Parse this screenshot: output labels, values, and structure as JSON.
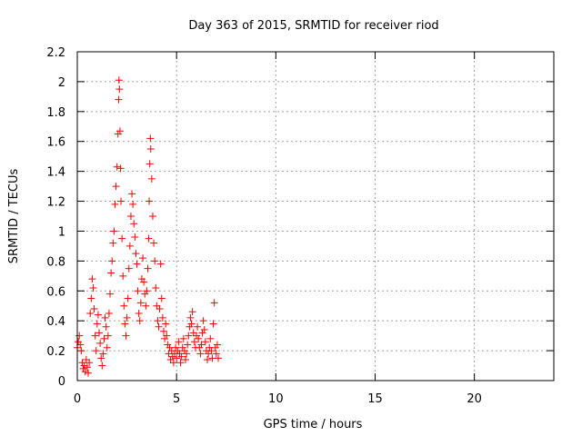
{
  "chart_data": {
    "type": "scatter",
    "title": "Day 363 of 2015, SRMTID for receiver riod",
    "xlabel": "GPS time / hours",
    "ylabel": "SRMTID / TECUs",
    "xlim": [
      0,
      24
    ],
    "ylim": [
      0,
      2.2
    ],
    "xticks": [
      0,
      5,
      10,
      15,
      20
    ],
    "yticks": [
      0,
      0.2,
      0.4,
      0.6,
      0.8,
      1,
      1.2,
      1.4,
      1.6,
      1.8,
      2,
      2.2
    ],
    "xtick_labels": [
      "0",
      "5",
      "10",
      "15",
      "20"
    ],
    "ytick_labels": [
      "0",
      "0.2",
      "0.4",
      "0.6",
      "0.8",
      "1",
      "1.2",
      "1.4",
      "1.6",
      "1.8",
      "2",
      "2.2"
    ],
    "grid": true,
    "marker": "plus",
    "series": [
      {
        "name": "SRMTID",
        "color": "#ff0000",
        "points": [
          [
            0.0,
            0.22
          ],
          [
            0.05,
            0.26
          ],
          [
            0.1,
            0.3
          ],
          [
            0.15,
            0.24
          ],
          [
            0.2,
            0.2
          ],
          [
            0.25,
            0.12
          ],
          [
            0.3,
            0.08
          ],
          [
            0.35,
            0.1
          ],
          [
            0.4,
            0.06
          ],
          [
            0.45,
            0.14
          ],
          [
            0.5,
            0.09
          ],
          [
            0.55,
            0.05
          ],
          [
            0.6,
            0.12
          ],
          [
            0.65,
            0.45
          ],
          [
            0.7,
            0.55
          ],
          [
            0.75,
            0.68
          ],
          [
            0.8,
            0.62
          ],
          [
            0.85,
            0.48
          ],
          [
            0.9,
            0.3
          ],
          [
            0.95,
            0.2
          ],
          [
            1.0,
            0.38
          ],
          [
            1.05,
            0.44
          ],
          [
            1.1,
            0.32
          ],
          [
            1.15,
            0.25
          ],
          [
            1.2,
            0.15
          ],
          [
            1.25,
            0.1
          ],
          [
            1.3,
            0.18
          ],
          [
            1.35,
            0.28
          ],
          [
            1.4,
            0.42
          ],
          [
            1.45,
            0.36
          ],
          [
            1.5,
            0.22
          ],
          [
            1.55,
            0.3
          ],
          [
            1.6,
            0.45
          ],
          [
            1.65,
            0.58
          ],
          [
            1.7,
            0.72
          ],
          [
            1.75,
            0.8
          ],
          [
            1.8,
            0.92
          ],
          [
            1.85,
            1.0
          ],
          [
            1.9,
            1.18
          ],
          [
            1.95,
            1.3
          ],
          [
            2.0,
            1.43
          ],
          [
            2.05,
            1.65
          ],
          [
            2.08,
            1.88
          ],
          [
            2.1,
            2.01
          ],
          [
            2.12,
            1.95
          ],
          [
            2.15,
            1.67
          ],
          [
            2.18,
            1.42
          ],
          [
            2.2,
            1.2
          ],
          [
            2.25,
            0.95
          ],
          [
            2.3,
            0.7
          ],
          [
            2.35,
            0.5
          ],
          [
            2.4,
            0.38
          ],
          [
            2.45,
            0.3
          ],
          [
            2.5,
            0.42
          ],
          [
            2.55,
            0.55
          ],
          [
            2.6,
            0.75
          ],
          [
            2.65,
            0.9
          ],
          [
            2.7,
            1.1
          ],
          [
            2.75,
            1.25
          ],
          [
            2.8,
            1.18
          ],
          [
            2.85,
            1.05
          ],
          [
            2.9,
            0.96
          ],
          [
            2.95,
            0.85
          ],
          [
            3.0,
            0.78
          ],
          [
            3.05,
            0.6
          ],
          [
            3.1,
            0.45
          ],
          [
            3.15,
            0.4
          ],
          [
            3.2,
            0.52
          ],
          [
            3.25,
            0.68
          ],
          [
            3.3,
            0.82
          ],
          [
            3.35,
            0.66
          ],
          [
            3.4,
            0.58
          ],
          [
            3.45,
            0.5
          ],
          [
            3.5,
            0.6
          ],
          [
            3.55,
            0.75
          ],
          [
            3.6,
            0.95
          ],
          [
            3.62,
            1.2
          ],
          [
            3.65,
            1.45
          ],
          [
            3.68,
            1.62
          ],
          [
            3.7,
            1.55
          ],
          [
            3.75,
            1.35
          ],
          [
            3.8,
            1.1
          ],
          [
            3.85,
            0.92
          ],
          [
            3.9,
            0.8
          ],
          [
            3.95,
            0.62
          ],
          [
            4.0,
            0.5
          ],
          [
            4.05,
            0.4
          ],
          [
            4.1,
            0.36
          ],
          [
            4.15,
            0.48
          ],
          [
            4.2,
            0.78
          ],
          [
            4.25,
            0.55
          ],
          [
            4.3,
            0.42
          ],
          [
            4.35,
            0.33
          ],
          [
            4.4,
            0.28
          ],
          [
            4.45,
            0.38
          ],
          [
            4.5,
            0.3
          ],
          [
            4.55,
            0.24
          ],
          [
            4.6,
            0.18
          ],
          [
            4.65,
            0.22
          ],
          [
            4.7,
            0.14
          ],
          [
            4.75,
            0.2
          ],
          [
            4.8,
            0.16
          ],
          [
            4.85,
            0.12
          ],
          [
            4.9,
            0.18
          ],
          [
            4.95,
            0.22
          ],
          [
            5.0,
            0.15
          ],
          [
            5.05,
            0.2
          ],
          [
            5.1,
            0.26
          ],
          [
            5.15,
            0.18
          ],
          [
            5.2,
            0.12
          ],
          [
            5.25,
            0.16
          ],
          [
            5.3,
            0.22
          ],
          [
            5.35,
            0.28
          ],
          [
            5.4,
            0.2
          ],
          [
            5.45,
            0.14
          ],
          [
            5.5,
            0.18
          ],
          [
            5.55,
            0.24
          ],
          [
            5.6,
            0.3
          ],
          [
            5.65,
            0.36
          ],
          [
            5.7,
            0.42
          ],
          [
            5.75,
            0.38
          ],
          [
            5.8,
            0.46
          ],
          [
            5.85,
            0.32
          ],
          [
            5.9,
            0.26
          ],
          [
            5.95,
            0.22
          ],
          [
            6.0,
            0.3
          ],
          [
            6.05,
            0.36
          ],
          [
            6.1,
            0.28
          ],
          [
            6.15,
            0.22
          ],
          [
            6.2,
            0.18
          ],
          [
            6.25,
            0.24
          ],
          [
            6.3,
            0.32
          ],
          [
            6.35,
            0.4
          ],
          [
            6.4,
            0.34
          ],
          [
            6.45,
            0.26
          ],
          [
            6.5,
            0.2
          ],
          [
            6.55,
            0.14
          ],
          [
            6.6,
            0.18
          ],
          [
            6.65,
            0.22
          ],
          [
            6.7,
            0.28
          ],
          [
            6.75,
            0.2
          ],
          [
            6.8,
            0.15
          ],
          [
            6.85,
            0.38
          ],
          [
            6.9,
            0.52
          ],
          [
            6.95,
            0.22
          ],
          [
            7.0,
            0.18
          ],
          [
            7.05,
            0.24
          ],
          [
            7.1,
            0.15
          ]
        ]
      }
    ]
  }
}
